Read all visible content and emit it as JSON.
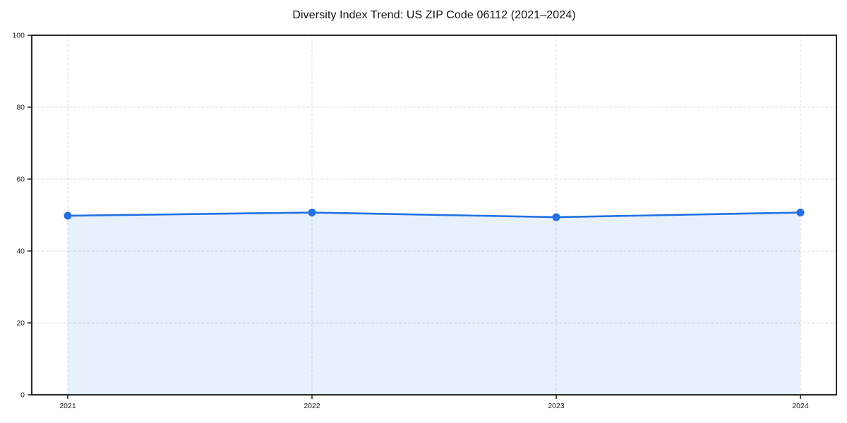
{
  "chart_data": {
    "type": "area",
    "title": "Diversity Index Trend: US ZIP Code 06112 (2021–2024)",
    "x": [
      "2021",
      "2022",
      "2023",
      "2024"
    ],
    "series": [
      {
        "name": "Diversity Index",
        "values": [
          49.8,
          50.7,
          49.4,
          50.7
        ]
      }
    ],
    "xlabel": "",
    "ylabel": "",
    "ylim": [
      0,
      100
    ],
    "yticks": [
      0,
      20,
      40,
      60,
      80,
      100
    ],
    "grid": true,
    "grid_style": "dashed",
    "legend_position": "none",
    "marker": "circle",
    "colors": {
      "line": "#2170e4",
      "marker": "#2170e4",
      "fill": "#2170e4",
      "fill_opacity": 0.1,
      "gridline": "#dddddd",
      "spine": "#111111",
      "tick_label": "#222222",
      "title": "#111111",
      "background": "#ffffff"
    }
  }
}
